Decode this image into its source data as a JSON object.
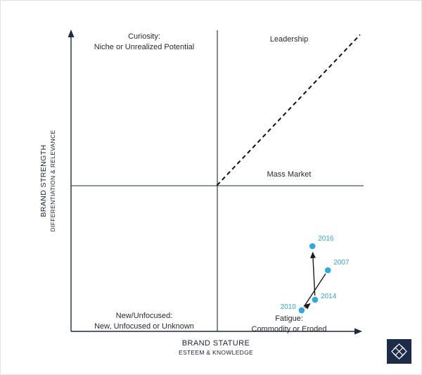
{
  "axes": {
    "y_title": "BRAND STRENGTH",
    "y_subtitle": "DIFFERENTIATION & RELEVANCE",
    "x_title": "BRAND STATURE",
    "x_subtitle": "ESTEEM & KNOWLEDGE"
  },
  "quadrants": {
    "top_left": {
      "title": "Curiosity:",
      "subtitle": "Niche or Unrealized Potential"
    },
    "top_right": {
      "title": "Leadership",
      "subtitle": ""
    },
    "bottom_left": {
      "title": "New/Unfocused:",
      "subtitle": "New, Unfocused or Unknown"
    },
    "bottom_right": {
      "title": "Fatigue:",
      "subtitle": "Commodity or Eroded"
    }
  },
  "labels": {
    "mass_market": "Mass Market"
  },
  "colors": {
    "accent": "#29abe2",
    "axis": "#1d2b45",
    "trajectory": "#1a1a1a",
    "diagonal": "#111111",
    "logo_bg": "#1d2b4a"
  },
  "chart_data": {
    "type": "scatter",
    "xlabel": "Brand Stature (Esteem & Knowledge)",
    "ylabel": "Brand Strength (Differentiation & Relevance)",
    "xlim": [
      0,
      100
    ],
    "ylim": [
      0,
      100
    ],
    "grid": false,
    "legend": false,
    "quadrant_divider": {
      "x": 50,
      "y": 48.5
    },
    "diagonal_dashed_line": {
      "from": [
        50,
        48.5
      ],
      "to": [
        99,
        98.5
      ]
    },
    "points": [
      {
        "label": "2016",
        "x": 82.7,
        "y": 28.3,
        "label_side": "right",
        "label_dy": -8
      },
      {
        "label": "2007",
        "x": 88.0,
        "y": 20.3,
        "label_side": "right",
        "label_dy": -8
      },
      {
        "label": "2014",
        "x": 83.6,
        "y": 10.5,
        "label_side": "right",
        "label_dy": -2
      },
      {
        "label": "2010",
        "x": 79.0,
        "y": 7.0,
        "label_side": "left",
        "label_dy": -2
      }
    ],
    "trajectory": {
      "order": [
        "2007",
        "2010",
        "2014",
        "2016"
      ],
      "arrows": [
        false,
        true,
        true
      ]
    }
  }
}
